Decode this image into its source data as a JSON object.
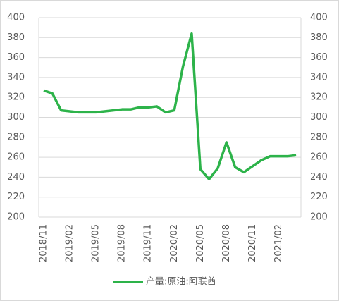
{
  "chart_data": {
    "type": "line",
    "categories": [
      "2018/11",
      null,
      null,
      "2019/02",
      null,
      null,
      "2019/05",
      null,
      null,
      "2019/08",
      null,
      null,
      "2019/11",
      null,
      null,
      "2020/02",
      null,
      null,
      "2020/05",
      null,
      null,
      "2020/08",
      null,
      null,
      "2020/11",
      null,
      null,
      "2021/02",
      null,
      null
    ],
    "series": [
      {
        "name": "产量:原油:阿联酋",
        "color": "#2db34a",
        "values": [
          327,
          324,
          307,
          306,
          305,
          305,
          305,
          306,
          307,
          308,
          308,
          310,
          310,
          311,
          305,
          307,
          351,
          384,
          248,
          238,
          249,
          275,
          250,
          245,
          251,
          257,
          261,
          261,
          261,
          262
        ]
      }
    ],
    "ylim": [
      200,
      400
    ],
    "yticks": [
      200,
      220,
      240,
      260,
      280,
      300,
      320,
      340,
      360,
      380,
      400
    ],
    "y2lim": [
      200,
      400
    ],
    "y2ticks": [
      200,
      220,
      240,
      260,
      280,
      300,
      320,
      340,
      360,
      380,
      400
    ],
    "grid": true,
    "legend": "bottom"
  }
}
